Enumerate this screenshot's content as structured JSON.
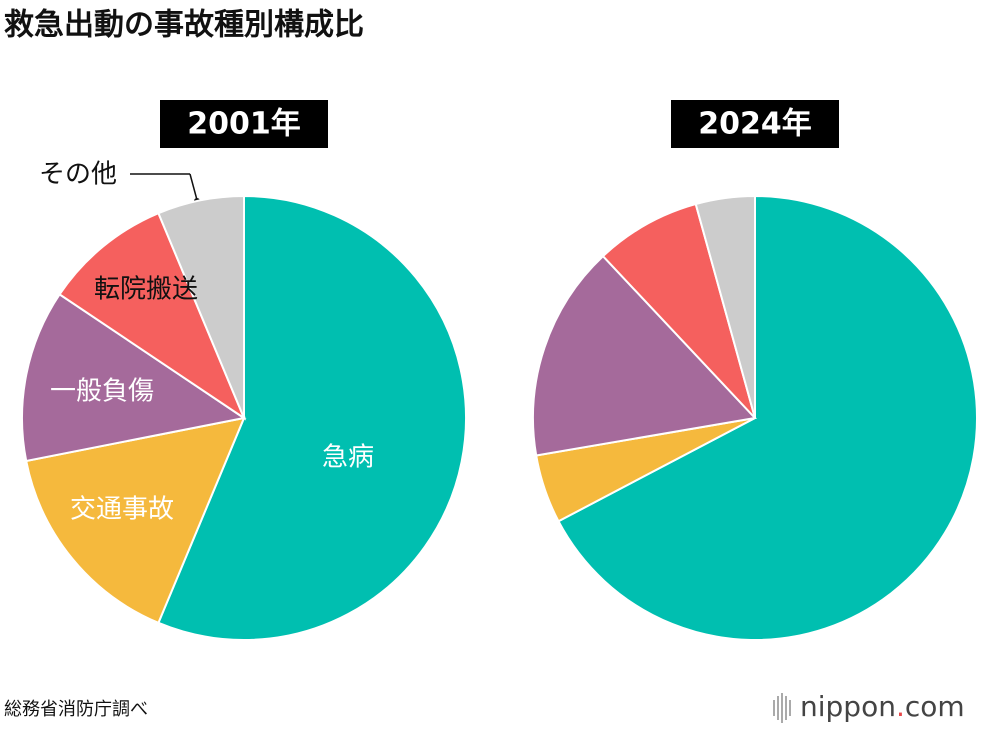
{
  "title": "救急出動の事故種別構成比",
  "source": "総務省消防庁調べ",
  "logo": {
    "main": "nippon",
    "dot": ".",
    "tail": "com"
  },
  "chart_data": [
    {
      "type": "pie",
      "title": "2001年",
      "categories": [
        "急病",
        "交通事故",
        "一般負傷",
        "転院搬送",
        "その他"
      ],
      "values": [
        56.3,
        15.6,
        12.5,
        9.3,
        6.3
      ],
      "colors": [
        "#00bfb0",
        "#f5b93d",
        "#a56a9b",
        "#f5605e",
        "#cccccc"
      ]
    },
    {
      "type": "pie",
      "title": "2024年",
      "values": [
        67.3,
        5.0,
        15.7,
        7.7,
        4.3
      ],
      "colors": [
        "#00bfb0",
        "#f5b93d",
        "#a56a9b",
        "#f5605e",
        "#cccccc"
      ]
    }
  ]
}
